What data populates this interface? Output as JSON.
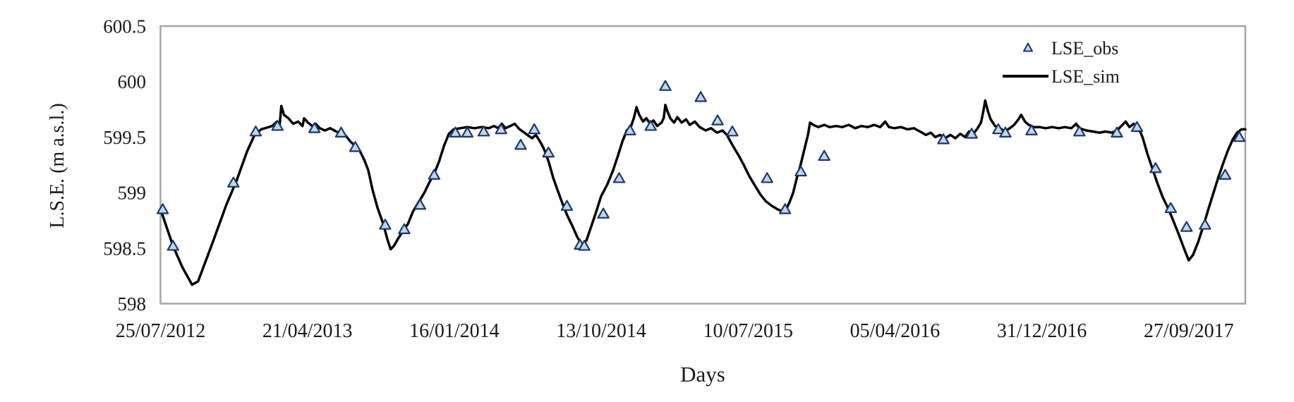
{
  "page": {
    "background": "#ffffff"
  },
  "chart_data": {
    "type": "line",
    "title": "",
    "xlabel": "Days",
    "ylabel": "L.S.E. (m a.s.l.)",
    "xlim_days": [
      0,
      1994
    ],
    "ylim": [
      598,
      600.5
    ],
    "grid": false,
    "plot_border_color": "#a6a6a6",
    "y_ticks": [
      598,
      598.5,
      599,
      599.5,
      600,
      600.5
    ],
    "y_tick_labels": [
      "598",
      "598.5",
      "599",
      "599.5",
      "600",
      "600.5"
    ],
    "x_ticks": [
      {
        "day": 0,
        "label": "25/07/2012"
      },
      {
        "day": 270,
        "label": "21/04/2013"
      },
      {
        "day": 540,
        "label": "16/01/2014"
      },
      {
        "day": 810,
        "label": "13/10/2014"
      },
      {
        "day": 1080,
        "label": "10/07/2015"
      },
      {
        "day": 1350,
        "label": "05/04/2016"
      },
      {
        "day": 1620,
        "label": "31/12/2016"
      },
      {
        "day": 1890,
        "label": "27/09/2017"
      }
    ],
    "legend": {
      "position": "top-right-inside",
      "entries": [
        {
          "label": "LSE_obs",
          "type": "scatter"
        },
        {
          "label": "LSE_sim",
          "type": "line"
        }
      ]
    },
    "series": [
      {
        "name": "LSE_obs",
        "type": "scatter",
        "marker": "triangle",
        "marker_fill": "#bdd7ee",
        "marker_stroke": "#1f3864",
        "points": [
          [
            4,
            598.85
          ],
          [
            23,
            598.52
          ],
          [
            134,
            599.09
          ],
          [
            175,
            599.55
          ],
          [
            215,
            599.6
          ],
          [
            283,
            599.58
          ],
          [
            332,
            599.54
          ],
          [
            358,
            599.41
          ],
          [
            413,
            598.71
          ],
          [
            448,
            598.67
          ],
          [
            477,
            598.89
          ],
          [
            503,
            599.16
          ],
          [
            542,
            599.54
          ],
          [
            564,
            599.54
          ],
          [
            594,
            599.55
          ],
          [
            626,
            599.57
          ],
          [
            662,
            599.43
          ],
          [
            687,
            599.57
          ],
          [
            713,
            599.36
          ],
          [
            747,
            598.88
          ],
          [
            771,
            598.53
          ],
          [
            779,
            598.52
          ],
          [
            814,
            598.81
          ],
          [
            843,
            599.13
          ],
          [
            863,
            599.56
          ],
          [
            901,
            599.6
          ],
          [
            928,
            599.96
          ],
          [
            993,
            599.86
          ],
          [
            1024,
            599.65
          ],
          [
            1051,
            599.55
          ],
          [
            1115,
            599.13
          ],
          [
            1148,
            598.85
          ],
          [
            1177,
            599.19
          ],
          [
            1220,
            599.33
          ],
          [
            1439,
            599.48
          ],
          [
            1491,
            599.53
          ],
          [
            1540,
            599.57
          ],
          [
            1553,
            599.54
          ],
          [
            1601,
            599.56
          ],
          [
            1689,
            599.55
          ],
          [
            1758,
            599.54
          ],
          [
            1795,
            599.59
          ],
          [
            1829,
            599.22
          ],
          [
            1857,
            598.86
          ],
          [
            1886,
            598.69
          ],
          [
            1920,
            598.71
          ],
          [
            1957,
            599.16
          ],
          [
            1983,
            599.5
          ]
        ]
      },
      {
        "name": "LSE_sim",
        "type": "line",
        "color": "#000000",
        "width": 3.5,
        "points": [
          [
            0,
            598.85
          ],
          [
            23,
            598.52
          ],
          [
            40,
            598.33
          ],
          [
            58,
            598.17
          ],
          [
            69,
            598.2
          ],
          [
            95,
            598.54
          ],
          [
            121,
            598.89
          ],
          [
            140,
            599.11
          ],
          [
            159,
            599.37
          ],
          [
            172,
            599.51
          ],
          [
            185,
            599.57
          ],
          [
            205,
            599.6
          ],
          [
            214,
            599.64
          ],
          [
            219,
            599.61
          ],
          [
            222,
            599.78
          ],
          [
            227,
            599.7
          ],
          [
            235,
            599.67
          ],
          [
            244,
            599.62
          ],
          [
            253,
            599.64
          ],
          [
            261,
            599.6
          ],
          [
            264,
            599.67
          ],
          [
            271,
            599.63
          ],
          [
            279,
            599.6
          ],
          [
            285,
            599.62
          ],
          [
            293,
            599.58
          ],
          [
            302,
            599.56
          ],
          [
            312,
            599.58
          ],
          [
            323,
            599.55
          ],
          [
            332,
            599.53
          ],
          [
            341,
            599.51
          ],
          [
            349,
            599.46
          ],
          [
            358,
            599.42
          ],
          [
            367,
            599.37
          ],
          [
            375,
            599.29
          ],
          [
            382,
            599.2
          ],
          [
            390,
            599.02
          ],
          [
            399,
            598.86
          ],
          [
            410,
            598.71
          ],
          [
            417,
            598.58
          ],
          [
            423,
            598.49
          ],
          [
            429,
            598.52
          ],
          [
            436,
            598.58
          ],
          [
            445,
            598.65
          ],
          [
            455,
            598.72
          ],
          [
            464,
            598.83
          ],
          [
            474,
            598.91
          ],
          [
            485,
            599.0
          ],
          [
            494,
            599.09
          ],
          [
            503,
            599.17
          ],
          [
            512,
            599.28
          ],
          [
            521,
            599.42
          ],
          [
            530,
            599.53
          ],
          [
            539,
            599.57
          ],
          [
            551,
            599.58
          ],
          [
            564,
            599.59
          ],
          [
            577,
            599.58
          ],
          [
            590,
            599.59
          ],
          [
            603,
            599.58
          ],
          [
            613,
            599.6
          ],
          [
            621,
            599.58
          ],
          [
            627,
            599.62
          ],
          [
            634,
            599.58
          ],
          [
            643,
            599.6
          ],
          [
            651,
            599.62
          ],
          [
            660,
            599.57
          ],
          [
            669,
            599.54
          ],
          [
            677,
            599.51
          ],
          [
            683,
            599.49
          ],
          [
            690,
            599.52
          ],
          [
            695,
            599.48
          ],
          [
            700,
            599.44
          ],
          [
            706,
            599.38
          ],
          [
            714,
            599.27
          ],
          [
            722,
            599.13
          ],
          [
            730,
            599.02
          ],
          [
            739,
            598.9
          ],
          [
            748,
            598.79
          ],
          [
            757,
            598.7
          ],
          [
            766,
            598.6
          ],
          [
            775,
            598.53
          ],
          [
            783,
            598.57
          ],
          [
            792,
            598.7
          ],
          [
            801,
            598.83
          ],
          [
            810,
            598.97
          ],
          [
            821,
            599.07
          ],
          [
            831,
            599.19
          ],
          [
            840,
            599.32
          ],
          [
            849,
            599.46
          ],
          [
            857,
            599.56
          ],
          [
            865,
            599.6
          ],
          [
            870,
            599.67
          ],
          [
            875,
            599.77
          ],
          [
            880,
            599.7
          ],
          [
            887,
            599.64
          ],
          [
            893,
            599.67
          ],
          [
            900,
            599.62
          ],
          [
            906,
            599.65
          ],
          [
            913,
            599.6
          ],
          [
            921,
            599.63
          ],
          [
            925,
            599.67
          ],
          [
            928,
            599.79
          ],
          [
            932,
            599.73
          ],
          [
            937,
            599.67
          ],
          [
            944,
            599.63
          ],
          [
            950,
            599.68
          ],
          [
            958,
            599.63
          ],
          [
            966,
            599.66
          ],
          [
            973,
            599.61
          ],
          [
            982,
            599.64
          ],
          [
            991,
            599.59
          ],
          [
            1002,
            599.56
          ],
          [
            1012,
            599.58
          ],
          [
            1023,
            599.54
          ],
          [
            1033,
            599.56
          ],
          [
            1041,
            599.52
          ],
          [
            1051,
            599.43
          ],
          [
            1062,
            599.34
          ],
          [
            1072,
            599.25
          ],
          [
            1082,
            599.15
          ],
          [
            1093,
            599.06
          ],
          [
            1103,
            598.98
          ],
          [
            1113,
            598.92
          ],
          [
            1124,
            598.88
          ],
          [
            1134,
            598.85
          ],
          [
            1144,
            598.83
          ],
          [
            1150,
            598.85
          ],
          [
            1156,
            598.91
          ],
          [
            1163,
            599.0
          ],
          [
            1169,
            599.12
          ],
          [
            1176,
            599.24
          ],
          [
            1183,
            599.38
          ],
          [
            1190,
            599.52
          ],
          [
            1194,
            599.63
          ],
          [
            1200,
            599.61
          ],
          [
            1209,
            599.59
          ],
          [
            1220,
            599.61
          ],
          [
            1230,
            599.59
          ],
          [
            1242,
            599.6
          ],
          [
            1253,
            599.59
          ],
          [
            1265,
            599.61
          ],
          [
            1277,
            599.58
          ],
          [
            1288,
            599.6
          ],
          [
            1300,
            599.59
          ],
          [
            1312,
            599.61
          ],
          [
            1323,
            599.59
          ],
          [
            1332,
            599.64
          ],
          [
            1339,
            599.59
          ],
          [
            1349,
            599.58
          ],
          [
            1361,
            599.59
          ],
          [
            1373,
            599.57
          ],
          [
            1385,
            599.58
          ],
          [
            1396,
            599.55
          ],
          [
            1407,
            599.52
          ],
          [
            1416,
            599.54
          ],
          [
            1424,
            599.5
          ],
          [
            1433,
            599.52
          ],
          [
            1442,
            599.49
          ],
          [
            1452,
            599.52
          ],
          [
            1461,
            599.49
          ],
          [
            1470,
            599.53
          ],
          [
            1479,
            599.5
          ],
          [
            1486,
            599.55
          ],
          [
            1494,
            599.53
          ],
          [
            1502,
            599.58
          ],
          [
            1508,
            599.63
          ],
          [
            1512,
            599.72
          ],
          [
            1516,
            599.83
          ],
          [
            1521,
            599.73
          ],
          [
            1526,
            599.66
          ],
          [
            1534,
            599.6
          ],
          [
            1543,
            599.58
          ],
          [
            1552,
            599.55
          ],
          [
            1561,
            599.58
          ],
          [
            1569,
            599.61
          ],
          [
            1577,
            599.66
          ],
          [
            1582,
            599.7
          ],
          [
            1589,
            599.64
          ],
          [
            1596,
            599.61
          ],
          [
            1605,
            599.59
          ],
          [
            1616,
            599.59
          ],
          [
            1627,
            599.58
          ],
          [
            1639,
            599.59
          ],
          [
            1651,
            599.58
          ],
          [
            1662,
            599.59
          ],
          [
            1674,
            599.58
          ],
          [
            1683,
            599.62
          ],
          [
            1689,
            599.58
          ],
          [
            1702,
            599.56
          ],
          [
            1714,
            599.55
          ],
          [
            1726,
            599.54
          ],
          [
            1737,
            599.55
          ],
          [
            1749,
            599.54
          ],
          [
            1758,
            599.56
          ],
          [
            1766,
            599.6
          ],
          [
            1774,
            599.64
          ],
          [
            1781,
            599.59
          ],
          [
            1789,
            599.62
          ],
          [
            1797,
            599.59
          ],
          [
            1805,
            599.5
          ],
          [
            1814,
            599.35
          ],
          [
            1823,
            599.22
          ],
          [
            1832,
            599.09
          ],
          [
            1842,
            598.96
          ],
          [
            1853,
            598.85
          ],
          [
            1863,
            598.73
          ],
          [
            1872,
            598.62
          ],
          [
            1881,
            598.5
          ],
          [
            1890,
            598.39
          ],
          [
            1898,
            598.44
          ],
          [
            1907,
            598.55
          ],
          [
            1917,
            598.7
          ],
          [
            1926,
            598.85
          ],
          [
            1935,
            598.99
          ],
          [
            1944,
            599.13
          ],
          [
            1953,
            599.26
          ],
          [
            1962,
            599.38
          ],
          [
            1971,
            599.48
          ],
          [
            1979,
            599.54
          ],
          [
            1987,
            599.57
          ],
          [
            1994,
            599.57
          ]
        ]
      }
    ]
  }
}
